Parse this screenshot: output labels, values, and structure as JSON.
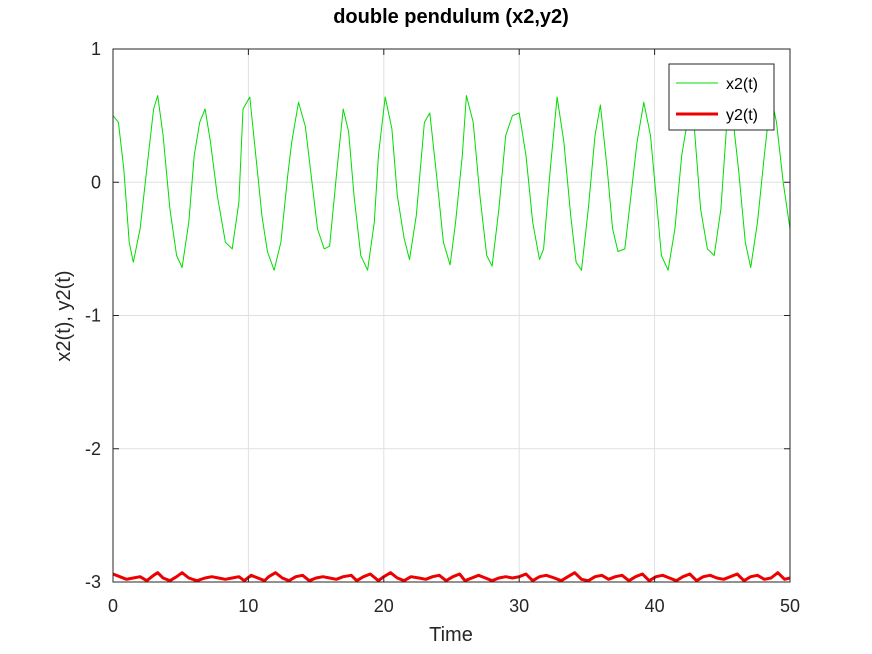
{
  "chart_data": {
    "type": "line",
    "title": "double pendulum (x2,y2)",
    "xlabel": "Time",
    "ylabel": "x2(t), y2(t)",
    "xlim": [
      0,
      50
    ],
    "ylim": [
      -3,
      1
    ],
    "xticks": [
      0,
      10,
      20,
      30,
      40,
      50
    ],
    "yticks": [
      -3,
      -2,
      -1,
      0,
      1
    ],
    "xtick_labels": [
      "0",
      "10",
      "20",
      "30",
      "40",
      "50"
    ],
    "ytick_labels": [
      "-3",
      "-2",
      "-1",
      "0",
      "1"
    ],
    "grid": true,
    "legend_position": "top-right",
    "series": [
      {
        "name": "x2(t)",
        "color": "#00dd00",
        "x": [
          0,
          0.4,
          0.8,
          1.2,
          1.5,
          2.0,
          2.5,
          3.0,
          3.3,
          3.7,
          4.2,
          4.7,
          5.1,
          5.6,
          6.0,
          6.4,
          6.8,
          7.2,
          7.7,
          8.3,
          8.8,
          9.3,
          9.6,
          10.1,
          10.6,
          11.0,
          11.4,
          11.9,
          12.4,
          12.9,
          13.2,
          13.7,
          14.2,
          14.7,
          15.1,
          15.6,
          16.0,
          16.5,
          17.0,
          17.4,
          17.8,
          18.3,
          18.8,
          19.3,
          19.6,
          20.1,
          20.6,
          21.0,
          21.5,
          21.9,
          22.4,
          23.0,
          23.4,
          23.9,
          24.4,
          24.9,
          25.3,
          25.8,
          26.1,
          26.6,
          27.1,
          27.6,
          28.0,
          28.5,
          29.0,
          29.5,
          30.0,
          30.5,
          31.0,
          31.5,
          31.8,
          32.3,
          32.8,
          33.3,
          33.8,
          34.2,
          34.6,
          35.1,
          35.6,
          36.0,
          36.5,
          36.9,
          37.3,
          37.8,
          38.2,
          38.7,
          39.2,
          39.7,
          40.1,
          40.5,
          41.0,
          41.5,
          42.0,
          42.5,
          42.9,
          43.4,
          43.9,
          44.4,
          44.9,
          45.3,
          45.7,
          46.2,
          46.7,
          47.1,
          47.6,
          48.1,
          48.6,
          49.0,
          49.5,
          50.0
        ],
        "values": [
          0.5,
          0.45,
          0.1,
          -0.45,
          -0.6,
          -0.35,
          0.1,
          0.55,
          0.65,
          0.35,
          -0.2,
          -0.55,
          -0.64,
          -0.3,
          0.2,
          0.45,
          0.55,
          0.3,
          -0.1,
          -0.45,
          -0.5,
          -0.15,
          0.55,
          0.64,
          0.15,
          -0.25,
          -0.52,
          -0.66,
          -0.45,
          0.05,
          0.3,
          0.6,
          0.42,
          0.0,
          -0.35,
          -0.5,
          -0.48,
          0.05,
          0.55,
          0.38,
          -0.1,
          -0.55,
          -0.66,
          -0.3,
          0.2,
          0.64,
          0.4,
          -0.1,
          -0.42,
          -0.58,
          -0.25,
          0.45,
          0.52,
          0.05,
          -0.45,
          -0.62,
          -0.3,
          0.2,
          0.65,
          0.45,
          -0.1,
          -0.55,
          -0.63,
          -0.2,
          0.35,
          0.5,
          0.52,
          0.2,
          -0.3,
          -0.58,
          -0.5,
          0.1,
          0.64,
          0.3,
          -0.25,
          -0.6,
          -0.66,
          -0.2,
          0.35,
          0.58,
          0.1,
          -0.35,
          -0.52,
          -0.5,
          -0.15,
          0.3,
          0.6,
          0.35,
          -0.1,
          -0.55,
          -0.66,
          -0.35,
          0.2,
          0.5,
          0.45,
          -0.2,
          -0.5,
          -0.55,
          -0.2,
          0.4,
          0.55,
          0.1,
          -0.45,
          -0.64,
          -0.3,
          0.2,
          0.65,
          0.45,
          0.0,
          -0.35
        ]
      },
      {
        "name": "y2(t)",
        "color": "#ee0000",
        "x": [
          0,
          0.5,
          1.0,
          1.5,
          2.0,
          2.5,
          3.0,
          3.3,
          3.7,
          4.2,
          4.7,
          5.1,
          5.6,
          6.2,
          6.8,
          7.3,
          7.8,
          8.3,
          8.8,
          9.3,
          9.7,
          10.2,
          10.7,
          11.2,
          11.5,
          12.0,
          12.5,
          13.0,
          13.5,
          14.0,
          14.5,
          15.0,
          15.5,
          16.0,
          16.5,
          17.0,
          17.6,
          18.0,
          18.5,
          19.0,
          19.6,
          20.0,
          20.5,
          21.0,
          21.5,
          22.0,
          22.6,
          23.1,
          23.6,
          24.1,
          24.6,
          25.1,
          25.6,
          26.0,
          26.5,
          27.0,
          27.5,
          28.0,
          28.5,
          29.0,
          29.5,
          30.0,
          30.5,
          31.0,
          31.5,
          32.0,
          32.6,
          33.1,
          33.6,
          34.1,
          34.6,
          35.1,
          35.6,
          36.1,
          36.6,
          37.1,
          37.6,
          38.1,
          38.6,
          39.1,
          39.6,
          40.1,
          40.6,
          41.1,
          41.6,
          42.1,
          42.6,
          43.1,
          43.6,
          44.1,
          44.6,
          45.1,
          45.6,
          46.1,
          46.6,
          47.1,
          47.6,
          48.1,
          48.6,
          49.1,
          49.6,
          50.0
        ],
        "values": [
          -2.94,
          -2.96,
          -2.98,
          -2.97,
          -2.96,
          -2.99,
          -2.95,
          -2.93,
          -2.97,
          -2.99,
          -2.96,
          -2.93,
          -2.97,
          -2.99,
          -2.97,
          -2.96,
          -2.97,
          -2.98,
          -2.97,
          -2.96,
          -2.99,
          -2.95,
          -2.97,
          -2.99,
          -2.96,
          -2.93,
          -2.97,
          -2.99,
          -2.96,
          -2.95,
          -2.99,
          -2.97,
          -2.96,
          -2.97,
          -2.98,
          -2.96,
          -2.95,
          -2.99,
          -2.96,
          -2.94,
          -2.99,
          -2.96,
          -2.93,
          -2.97,
          -2.99,
          -2.96,
          -2.97,
          -2.98,
          -2.96,
          -2.95,
          -2.99,
          -2.96,
          -2.94,
          -2.99,
          -2.97,
          -2.95,
          -2.97,
          -2.99,
          -2.97,
          -2.96,
          -2.97,
          -2.96,
          -2.94,
          -2.99,
          -2.96,
          -2.95,
          -2.97,
          -2.99,
          -2.96,
          -2.93,
          -2.98,
          -2.99,
          -2.96,
          -2.95,
          -2.98,
          -2.96,
          -2.95,
          -2.99,
          -2.96,
          -2.94,
          -2.99,
          -2.96,
          -2.95,
          -2.97,
          -2.99,
          -2.96,
          -2.94,
          -2.99,
          -2.96,
          -2.95,
          -2.97,
          -2.98,
          -2.96,
          -2.94,
          -2.99,
          -2.96,
          -2.95,
          -2.98,
          -2.97,
          -2.93,
          -2.98,
          -2.97
        ]
      }
    ]
  }
}
